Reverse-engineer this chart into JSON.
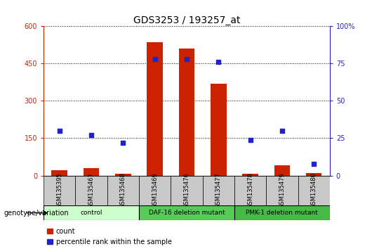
{
  "title": "GDS3253 / 193257_at",
  "samples": [
    "GSM135395",
    "GSM135467",
    "GSM135468",
    "GSM135469",
    "GSM135476",
    "GSM135477",
    "GSM135478",
    "GSM135479",
    "GSM135480"
  ],
  "counts": [
    20,
    30,
    8,
    535,
    510,
    370,
    8,
    40,
    10
  ],
  "percentiles": [
    30,
    27,
    22,
    78,
    78,
    76,
    24,
    30,
    8
  ],
  "left_ylim": [
    0,
    600
  ],
  "right_ylim": [
    0,
    100
  ],
  "left_yticks": [
    0,
    150,
    300,
    450,
    600
  ],
  "right_yticks": [
    0,
    25,
    50,
    75,
    100
  ],
  "left_ytick_labels": [
    "0",
    "150",
    "300",
    "450",
    "600"
  ],
  "right_ytick_labels": [
    "0",
    "25",
    "50",
    "75",
    "100%"
  ],
  "bar_color": "#cc2200",
  "marker_color": "#2222cc",
  "groups": [
    {
      "label": "control",
      "start": 0,
      "end": 3,
      "color": "#ccffcc"
    },
    {
      "label": "DAF-16 deletion mutant",
      "start": 3,
      "end": 6,
      "color": "#55cc55"
    },
    {
      "label": "PMK-1 deletion mutant",
      "start": 6,
      "end": 9,
      "color": "#44bb44"
    }
  ],
  "legend_count_label": "count",
  "legend_pct_label": "percentile rank within the sample",
  "genotype_label": "genotype/variation",
  "title_fontsize": 10,
  "tick_fontsize": 7,
  "label_fontsize": 7,
  "axis_label_color_left": "#cc2200",
  "axis_label_color_right": "#2222cc"
}
